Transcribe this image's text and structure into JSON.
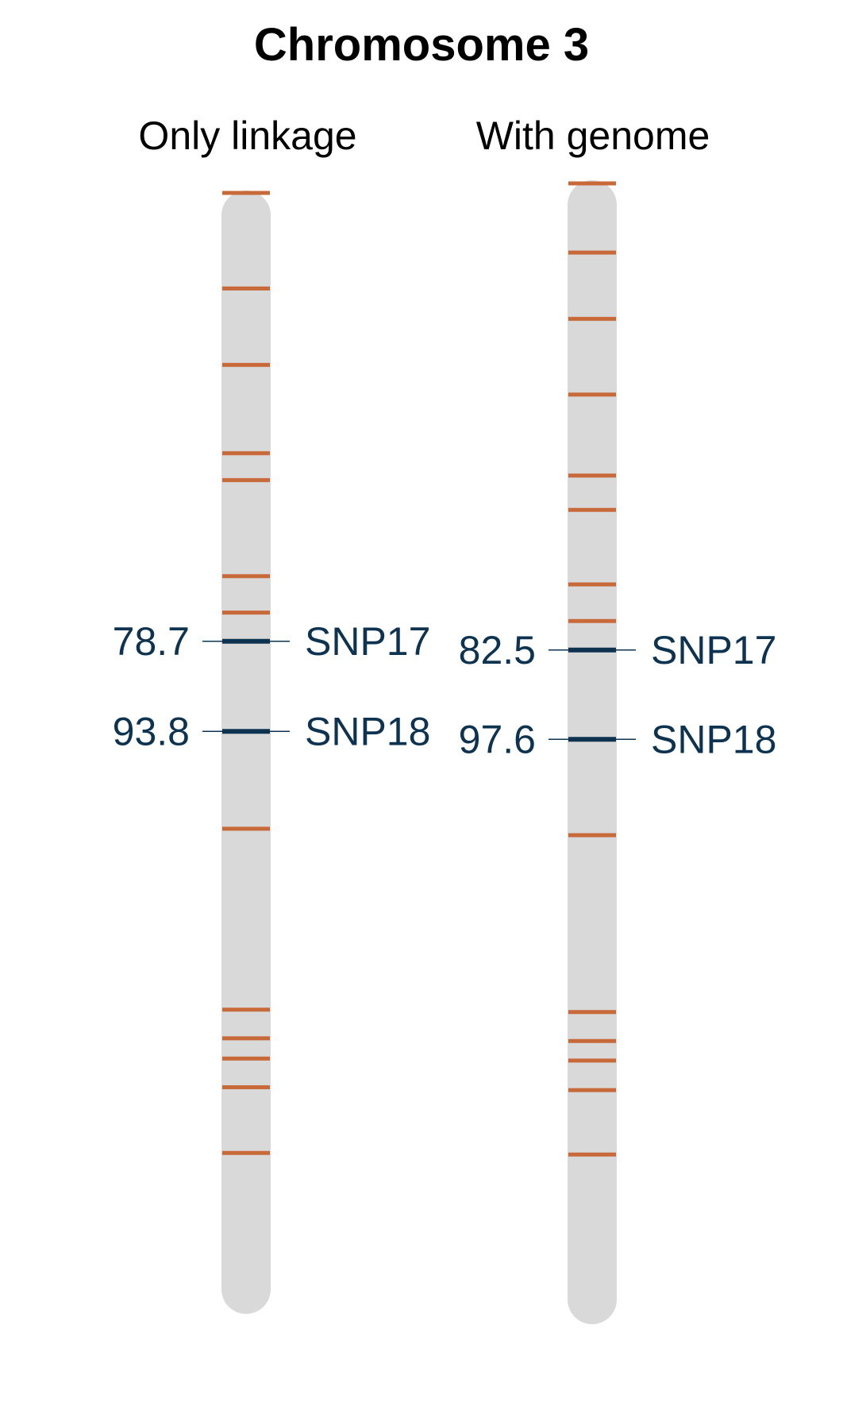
{
  "title": "Chromosome 3",
  "colors": {
    "chromosome_fill": "#d9d9d9",
    "marker_orange": "#c8693a",
    "marker_highlight": "#0d3350",
    "label_text": "#0d3350"
  },
  "panels": [
    {
      "title": "Only linkage",
      "highlights": [
        {
          "name": "SNP17",
          "position": "78.7"
        },
        {
          "name": "SNP18",
          "position": "93.8"
        }
      ]
    },
    {
      "title": "With genome",
      "highlights": [
        {
          "name": "SNP17",
          "position": "82.5"
        },
        {
          "name": "SNP18",
          "position": "97.6"
        }
      ]
    }
  ],
  "chart_data": {
    "type": "chromosome-map",
    "title": "Chromosome 3",
    "panels": [
      {
        "name": "Only linkage",
        "markers": [
          3.6,
          19.6,
          32.4,
          47.2,
          51.7,
          67.8,
          73.9,
          78.7,
          93.8,
          110.1,
          140.4,
          145.2,
          148.6,
          153.4,
          164.4
        ],
        "highlighted": [
          {
            "name": "SNP17",
            "position": 78.7
          },
          {
            "name": "SNP18",
            "position": 93.8
          }
        ]
      },
      {
        "name": "With genome",
        "markers": [
          3.6,
          15.3,
          26.5,
          39.3,
          53.0,
          58.8,
          71.4,
          77.6,
          82.5,
          97.6,
          113.8,
          143.7,
          148.6,
          151.9,
          156.9,
          167.8
        ],
        "highlighted": [
          {
            "name": "SNP17",
            "position": 82.5
          },
          {
            "name": "SNP18",
            "position": 97.6
          }
        ]
      }
    ]
  }
}
